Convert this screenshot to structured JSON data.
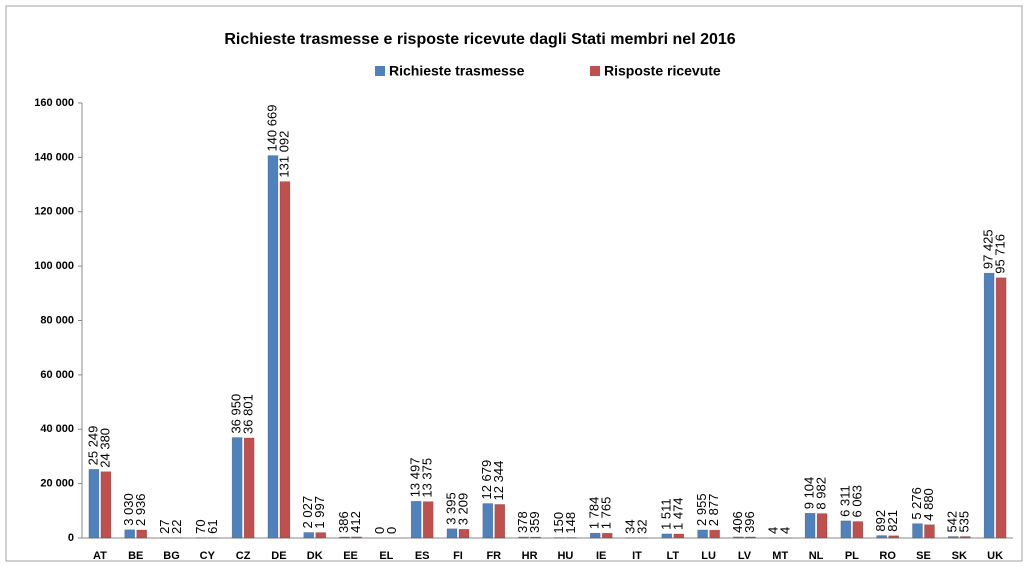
{
  "chart_data": {
    "type": "bar",
    "title": "Richieste trasmesse  e risposte  ricevute dagli Stati membri nel 2016",
    "categories": [
      "AT",
      "BE",
      "BG",
      "CY",
      "CZ",
      "DE",
      "DK",
      "EE",
      "EL",
      "ES",
      "FI",
      "FR",
      "HR",
      "HU",
      "IE",
      "IT",
      "LT",
      "LU",
      "LV",
      "MT",
      "NL",
      "PL",
      "RO",
      "SE",
      "SK",
      "UK"
    ],
    "series": [
      {
        "name": "Richieste trasmesse",
        "color": "#4f81bd",
        "values": [
          25249,
          3030,
          27,
          70,
          36950,
          140669,
          2027,
          386,
          0,
          13497,
          3395,
          12679,
          378,
          150,
          1784,
          34,
          1511,
          2955,
          406,
          4,
          9104,
          6311,
          892,
          5276,
          542,
          97425
        ],
        "value_labels": [
          "25 249",
          "3 030",
          "27",
          "70",
          "36 950",
          "140 669",
          "2 027",
          "386",
          "0",
          "13 497",
          "3 395",
          "12 679",
          "378",
          "150",
          "1 784",
          "34",
          "1 511",
          "2 955",
          "406",
          "4",
          "9 104",
          "6 311",
          "892",
          "5 276",
          "542",
          "97 425"
        ]
      },
      {
        "name": "Risposte ricevute",
        "color": "#c0504d",
        "values": [
          24380,
          2936,
          22,
          61,
          36801,
          131092,
          1997,
          412,
          0,
          13375,
          3209,
          12344,
          359,
          148,
          1765,
          32,
          1474,
          2877,
          396,
          4,
          8982,
          6063,
          821,
          4880,
          535,
          95716
        ],
        "value_labels": [
          "24 380",
          "2 936",
          "22",
          "61",
          "36 801",
          "131 092",
          "1 997",
          "412",
          "0",
          "13 375",
          "3 209",
          "12 344",
          "359",
          "148",
          "1 765",
          "32",
          "1 474",
          "2 877",
          "396",
          "4",
          "8 982",
          "6 063",
          "821",
          "4 880",
          "535",
          "95 716"
        ]
      }
    ],
    "ylim": [
      0,
      160000
    ],
    "yticks": [
      {
        "value": 0,
        "label": "0"
      },
      {
        "value": 20000,
        "label": "20 000"
      },
      {
        "value": 40000,
        "label": "40 000"
      },
      {
        "value": 60000,
        "label": "60 000"
      },
      {
        "value": 80000,
        "label": "80 000"
      },
      {
        "value": 100000,
        "label": "100 000"
      },
      {
        "value": 120000,
        "label": "120 000"
      },
      {
        "value": 140000,
        "label": "140 000"
      },
      {
        "value": 160000,
        "label": "160 000"
      }
    ],
    "grid": false,
    "legend": "top"
  }
}
